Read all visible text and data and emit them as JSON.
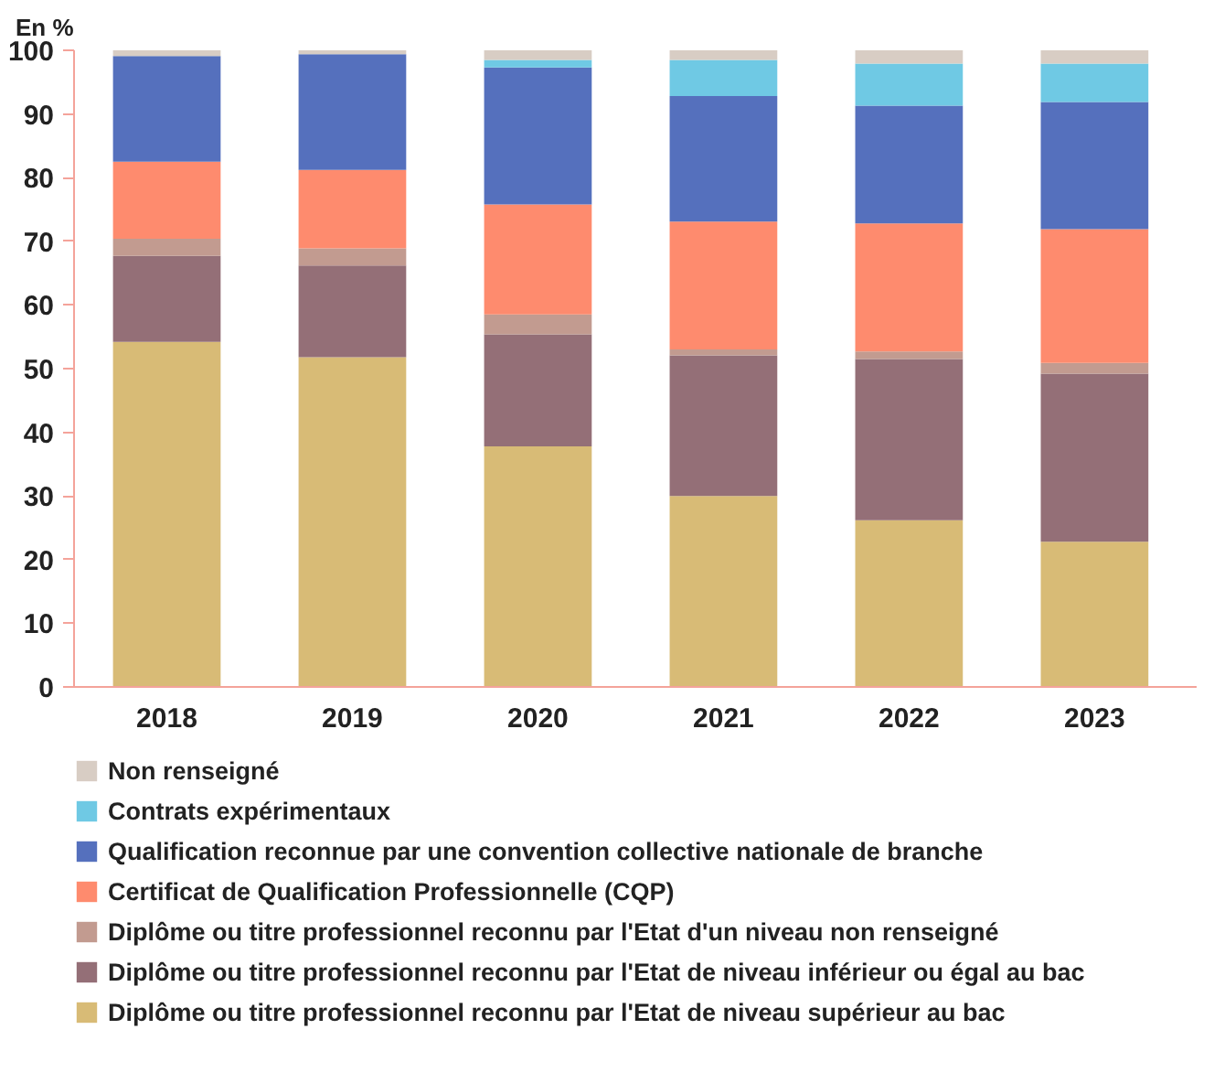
{
  "chart_data": {
    "type": "bar",
    "stacked": true,
    "ylabel": "En %",
    "categories": [
      "2018",
      "2019",
      "2020",
      "2021",
      "2022",
      "2023"
    ],
    "ylim": [
      0,
      100
    ],
    "yticks": [
      0,
      10,
      20,
      30,
      40,
      50,
      60,
      70,
      80,
      90,
      100
    ],
    "grid": false,
    "legend": "bottom",
    "series": [
      {
        "name": "Diplôme ou titre professionnel reconnu par l'Etat de niveau supérieur au bac",
        "color": "#d8bb76",
        "values": [
          54.2,
          51.8,
          37.8,
          30.0,
          26.2,
          22.8
        ]
      },
      {
        "name": "Diplôme ou titre professionnel reconnu par l'Etat de niveau inférieur ou égal au bac",
        "color": "#946f77",
        "values": [
          13.5,
          14.4,
          17.6,
          22.1,
          25.3,
          26.4
        ]
      },
      {
        "name": "Diplôme ou titre professionnel reconnu par l'Etat d'un niveau non renseigné",
        "color": "#c29b90",
        "values": [
          2.7,
          2.7,
          3.1,
          0.9,
          1.2,
          1.7
        ]
      },
      {
        "name": "Certificat de Qualification Professionnelle (CQP)",
        "color": "#fe8b6e",
        "values": [
          12.1,
          12.3,
          17.3,
          20.1,
          20.1,
          21.0
        ]
      },
      {
        "name": "Qualification reconnue par une convention collective nationale de branche",
        "color": "#5570bd",
        "values": [
          16.6,
          18.2,
          21.5,
          19.7,
          18.5,
          20.0
        ]
      },
      {
        "name": "Contrats expérimentaux",
        "color": "#6fc9e4",
        "values": [
          0,
          0,
          1.2,
          5.7,
          6.6,
          6.0
        ]
      },
      {
        "name": "Non renseigné",
        "color": "#d8cdc4",
        "values": [
          0.9,
          0.6,
          1.5,
          1.5,
          2.1,
          2.1
        ]
      }
    ]
  }
}
